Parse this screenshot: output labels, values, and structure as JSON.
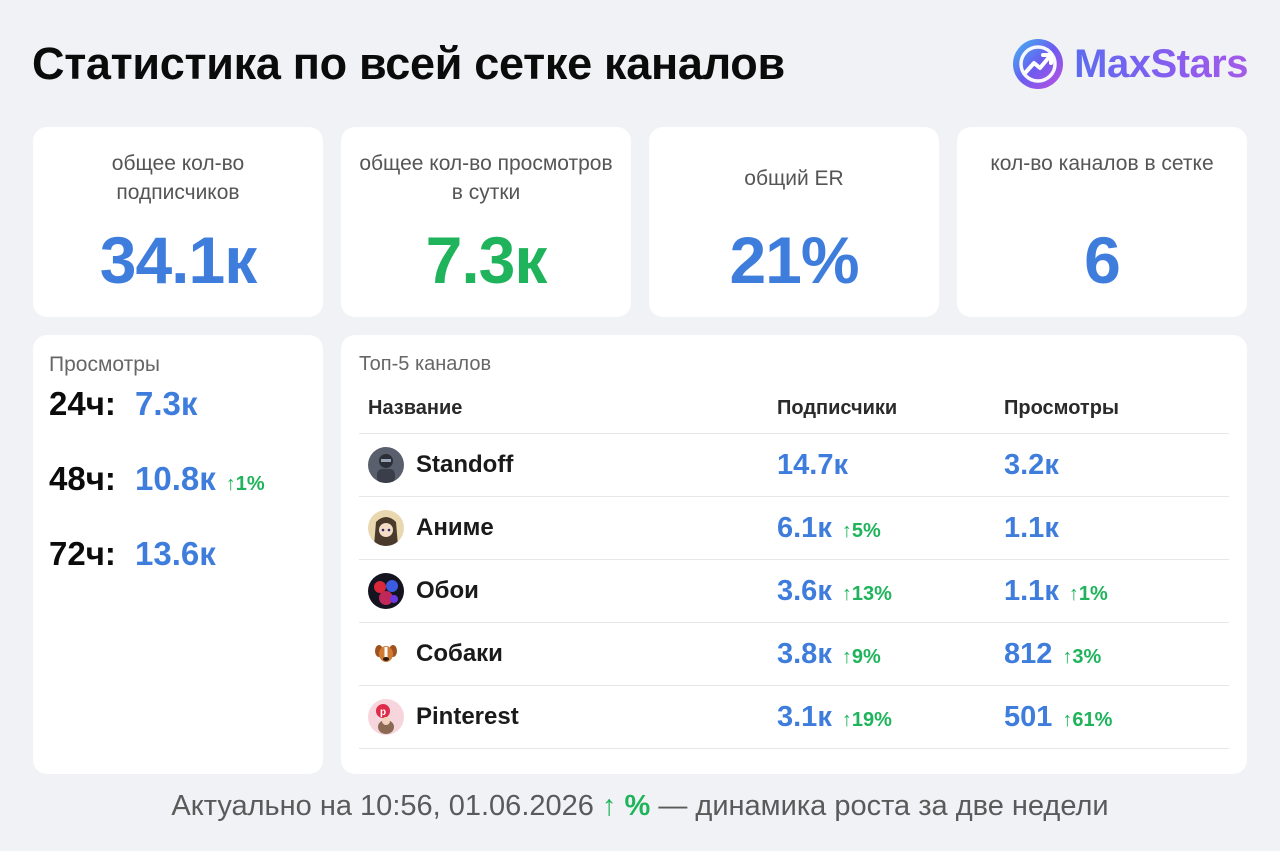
{
  "header": {
    "title": "Статистика по всей сетке каналов",
    "brand_name": "MaxStars",
    "brand_icon": "maxstars-logo-icon"
  },
  "stats": [
    {
      "label": "общее кол-во подписчиков",
      "value": "34.1к",
      "color": "#3f7ddd"
    },
    {
      "label": "общее кол-во просмотров в сутки",
      "value": "7.3к",
      "color": "#1fb45b"
    },
    {
      "label": "общий ER",
      "value": "21%",
      "color": "#3f7ddd"
    },
    {
      "label": "кол-во каналов в сетке",
      "value": "6",
      "color": "#3f7ddd"
    }
  ],
  "views": {
    "title": "Просмотры",
    "rows": [
      {
        "period": "24ч:",
        "value": "7.3к",
        "delta": ""
      },
      {
        "period": "48ч:",
        "value": "10.8к",
        "delta": "↑1%"
      },
      {
        "period": "72ч:",
        "value": "13.6к",
        "delta": ""
      }
    ]
  },
  "top": {
    "title": "Топ-5 каналов",
    "columns": [
      "Название",
      "Подписчики",
      "Просмотры"
    ],
    "rows": [
      {
        "name": "Standoff",
        "avatar": "standoff-avatar-icon",
        "subs": "14.7к",
        "subs_delta": "",
        "views": "3.2к",
        "views_delta": ""
      },
      {
        "name": "Аниме",
        "avatar": "anime-avatar-icon",
        "subs": "6.1к",
        "subs_delta": "↑5%",
        "views": "1.1к",
        "views_delta": ""
      },
      {
        "name": "Обои",
        "avatar": "wallpapers-avatar-icon",
        "subs": "3.6к",
        "subs_delta": "↑13%",
        "views": "1.1к",
        "views_delta": "↑1%"
      },
      {
        "name": "Собаки",
        "avatar": "dog-avatar-icon",
        "subs": "3.8к",
        "subs_delta": "↑9%",
        "views": "812",
        "views_delta": "↑3%"
      },
      {
        "name": "Pinterest",
        "avatar": "pinterest-avatar-icon",
        "subs": "3.1к",
        "subs_delta": "↑19%",
        "views": "501",
        "views_delta": "↑61%"
      }
    ]
  },
  "footer": {
    "prefix": "Актуально на 10:56, 01.06.2026",
    "legend": "↑ %",
    "suffix": "— динамика роста за две недели"
  },
  "colors": {
    "accent_blue": "#3f7ddd",
    "growth_green": "#1fb45b",
    "background": "#f1f2f5"
  }
}
